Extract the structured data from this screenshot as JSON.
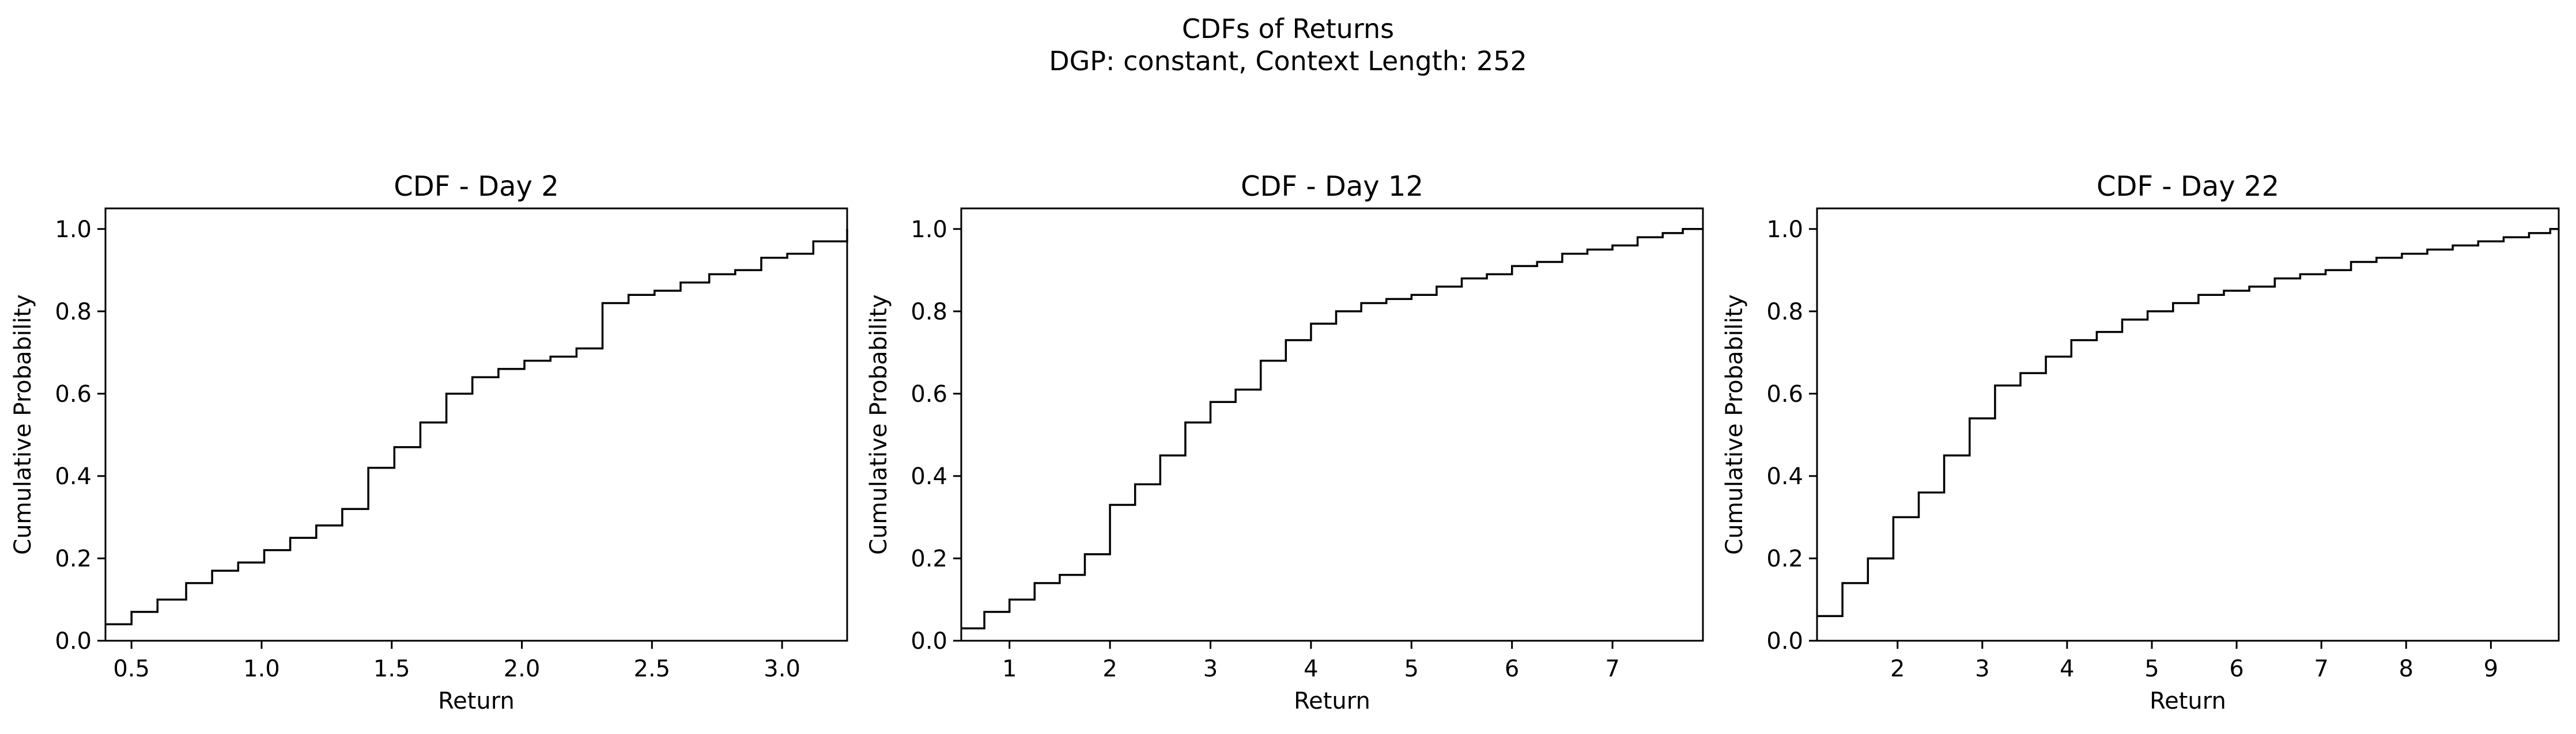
{
  "figure": {
    "suptitle_line1": "CDFs of Returns",
    "suptitle_line2": "DGP: constant, Context Length: 252"
  },
  "chart_data": [
    {
      "type": "line",
      "drawstyle": "steps-post",
      "title": "CDF - Day 2",
      "xlabel": "Return",
      "ylabel": "Cumulative Probability",
      "xlim": [
        0.4,
        3.25
      ],
      "ylim": [
        0.0,
        1.05
      ],
      "xticks": [
        0.5,
        1.0,
        1.5,
        2.0,
        2.5,
        3.0
      ],
      "xtick_labels": [
        "0.5",
        "1.0",
        "1.5",
        "2.0",
        "2.5",
        "3.0"
      ],
      "yticks": [
        0.0,
        0.2,
        0.4,
        0.6,
        0.8,
        1.0
      ],
      "ytick_labels": [
        "0.0",
        "0.2",
        "0.4",
        "0.6",
        "0.8",
        "1.0"
      ],
      "grid": false,
      "x": [
        0.4,
        0.5,
        0.6,
        0.71,
        0.81,
        0.91,
        1.01,
        1.11,
        1.21,
        1.31,
        1.41,
        1.51,
        1.61,
        1.71,
        1.81,
        1.91,
        2.01,
        2.11,
        2.21,
        2.31,
        2.41,
        2.51,
        2.61,
        2.72,
        2.82,
        2.92,
        3.02,
        3.12,
        3.25
      ],
      "y": [
        0.04,
        0.07,
        0.1,
        0.14,
        0.17,
        0.19,
        0.22,
        0.25,
        0.28,
        0.32,
        0.42,
        0.47,
        0.53,
        0.6,
        0.64,
        0.66,
        0.68,
        0.69,
        0.71,
        0.82,
        0.84,
        0.85,
        0.87,
        0.89,
        0.9,
        0.93,
        0.94,
        0.97,
        1.0
      ]
    },
    {
      "type": "line",
      "drawstyle": "steps-post",
      "title": "CDF - Day 12",
      "xlabel": "Return",
      "ylabel": "Cumulative Probability",
      "xlim": [
        0.52,
        7.9
      ],
      "ylim": [
        0.0,
        1.05
      ],
      "xticks": [
        1,
        2,
        3,
        4,
        5,
        6,
        7
      ],
      "xtick_labels": [
        "1",
        "2",
        "3",
        "4",
        "5",
        "6",
        "7"
      ],
      "yticks": [
        0.0,
        0.2,
        0.4,
        0.6,
        0.8,
        1.0
      ],
      "ytick_labels": [
        "0.0",
        "0.2",
        "0.4",
        "0.6",
        "0.8",
        "1.0"
      ],
      "grid": false,
      "x": [
        0.52,
        0.75,
        1.0,
        1.25,
        1.5,
        1.75,
        2.0,
        2.25,
        2.5,
        2.75,
        3.0,
        3.25,
        3.5,
        3.75,
        4.0,
        4.25,
        4.5,
        4.75,
        5.0,
        5.25,
        5.5,
        5.75,
        6.0,
        6.25,
        6.5,
        6.75,
        7.0,
        7.25,
        7.5,
        7.7,
        7.9
      ],
      "y": [
        0.03,
        0.07,
        0.1,
        0.14,
        0.16,
        0.21,
        0.33,
        0.38,
        0.45,
        0.53,
        0.58,
        0.61,
        0.68,
        0.73,
        0.77,
        0.8,
        0.82,
        0.83,
        0.84,
        0.86,
        0.88,
        0.89,
        0.91,
        0.92,
        0.94,
        0.95,
        0.96,
        0.98,
        0.99,
        1.0,
        1.0
      ]
    },
    {
      "type": "line",
      "drawstyle": "steps-post",
      "title": "CDF - Day 22",
      "xlabel": "Return",
      "ylabel": "Cumulative Probability",
      "xlim": [
        1.05,
        9.8
      ],
      "ylim": [
        0.0,
        1.05
      ],
      "xticks": [
        2,
        3,
        4,
        5,
        6,
        7,
        8,
        9
      ],
      "xtick_labels": [
        "2",
        "3",
        "4",
        "5",
        "6",
        "7",
        "8",
        "9"
      ],
      "yticks": [
        0.0,
        0.2,
        0.4,
        0.6,
        0.8,
        1.0
      ],
      "ytick_labels": [
        "0.0",
        "0.2",
        "0.4",
        "0.6",
        "0.8",
        "1.0"
      ],
      "grid": false,
      "x": [
        1.05,
        1.35,
        1.65,
        1.95,
        2.25,
        2.55,
        2.85,
        3.15,
        3.45,
        3.75,
        4.05,
        4.35,
        4.65,
        4.95,
        5.25,
        5.55,
        5.85,
        6.15,
        6.45,
        6.75,
        7.05,
        7.35,
        7.65,
        7.95,
        8.25,
        8.55,
        8.85,
        9.15,
        9.45,
        9.7,
        9.8
      ],
      "y": [
        0.06,
        0.14,
        0.2,
        0.3,
        0.36,
        0.45,
        0.54,
        0.62,
        0.65,
        0.69,
        0.73,
        0.75,
        0.78,
        0.8,
        0.82,
        0.84,
        0.85,
        0.86,
        0.88,
        0.89,
        0.9,
        0.92,
        0.93,
        0.94,
        0.95,
        0.96,
        0.97,
        0.98,
        0.99,
        1.0,
        1.0
      ]
    }
  ]
}
